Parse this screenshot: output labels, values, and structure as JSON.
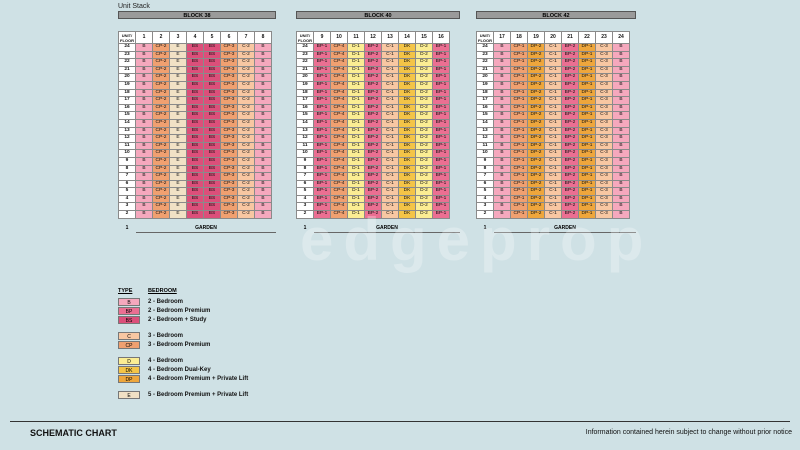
{
  "page": {
    "label": "Unit Stack",
    "footer_title": "SCHEMATIC CHART",
    "footer_note": "Information contained herein subject to change without prior notice",
    "watermark": "edgeprop"
  },
  "floor_header": "UNIT/ FLOOR",
  "floors": [
    "24",
    "23",
    "22",
    "21",
    "20",
    "19",
    "18",
    "17",
    "16",
    "15",
    "14",
    "13",
    "12",
    "11",
    "10",
    "9",
    "8",
    "7",
    "6",
    "5",
    "4",
    "3",
    "2"
  ],
  "garden_floor": "1",
  "garden_label": "GARDEN",
  "blocks": [
    {
      "title": "BLOCK 38",
      "stacks": [
        "1",
        "2",
        "3",
        "4",
        "5",
        "6",
        "7",
        "8"
      ],
      "types": [
        "B",
        "CP-2",
        "E",
        "BS",
        "BS",
        "CP-3",
        "C-2",
        "B"
      ],
      "classes": [
        "B",
        "CP",
        "E",
        "BS",
        "BS",
        "CP",
        "C",
        "B"
      ]
    },
    {
      "title": "BLOCK 40",
      "stacks": [
        "9",
        "10",
        "11",
        "12",
        "13",
        "14",
        "15",
        "16"
      ],
      "types": [
        "BP-1",
        "CP-4",
        "D-1",
        "BP-2",
        "C-1",
        "DK",
        "D-2",
        "BP-1"
      ],
      "classes": [
        "BP",
        "CP",
        "D",
        "BP",
        "C",
        "DK",
        "D",
        "BP"
      ]
    },
    {
      "title": "BLOCK 42",
      "stacks": [
        "17",
        "18",
        "19",
        "20",
        "21",
        "22",
        "23",
        "24"
      ],
      "types": [
        "B",
        "CP-1",
        "DP-2",
        "C-1",
        "BP-2",
        "DP-1",
        "C-3",
        "B"
      ],
      "classes": [
        "B",
        "CP",
        "DP",
        "C",
        "BP",
        "DP",
        "C",
        "B"
      ]
    }
  ],
  "legend": {
    "type_header": "TYPE",
    "bedroom_header": "BEDROOM",
    "groups": [
      [
        {
          "code": "B",
          "desc": "2 - Bedroom"
        },
        {
          "code": "BP",
          "desc": "2 - Bedroom Premium"
        },
        {
          "code": "BS",
          "desc": "2 - Bedroom + Study"
        }
      ],
      [
        {
          "code": "C",
          "desc": "3 - Bedroom"
        },
        {
          "code": "CP",
          "desc": "3 - Bedroom Premium"
        }
      ],
      [
        {
          "code": "D",
          "desc": "4 - Bedroom"
        },
        {
          "code": "DK",
          "desc": "4 - Bedroom Dual-Key"
        },
        {
          "code": "DP",
          "desc": "4 - Bedroom Premium + Private Lift"
        }
      ],
      [
        {
          "code": "E",
          "desc": "5 - Bedroom Premium + Private Lift"
        }
      ]
    ]
  },
  "colors": {
    "B": "#f5a8bd",
    "BP": "#eb6f92",
    "BS": "#dc4f7a",
    "C": "#f8c7a2",
    "CP": "#f0a070",
    "D": "#fbed93",
    "DK": "#f4c447",
    "DP": "#eea63c",
    "E": "#f1e1c5"
  }
}
